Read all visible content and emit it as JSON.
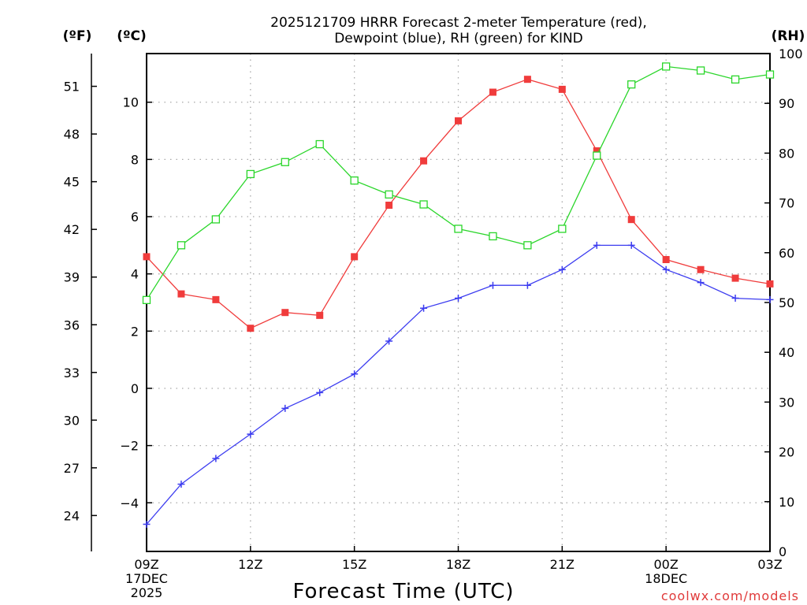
{
  "chart_data": {
    "type": "line",
    "title": [
      "2025121709 HRRR Forecast 2-meter Temperature (red),",
      "Dewpoint (blue), RH (green) for KIND"
    ],
    "xlabel": "Forecast Time (UTC)",
    "credit": "coolwx.com/models",
    "units": {
      "fahrenheit": "(ºF)",
      "celsius": "(ºC)",
      "rh": "(RH)"
    },
    "x_hours": [
      0,
      1,
      2,
      3,
      4,
      5,
      6,
      7,
      8,
      9,
      10,
      11,
      12,
      13,
      14,
      15,
      16,
      17,
      18
    ],
    "xlim": [
      0,
      18
    ],
    "x_ticks": [
      {
        "hour": 0,
        "lines": [
          "09Z",
          "17DEC",
          "2025"
        ]
      },
      {
        "hour": 3,
        "lines": [
          "12Z"
        ]
      },
      {
        "hour": 6,
        "lines": [
          "15Z"
        ]
      },
      {
        "hour": 9,
        "lines": [
          "18Z"
        ]
      },
      {
        "hour": 12,
        "lines": [
          "21Z"
        ]
      },
      {
        "hour": 15,
        "lines": [
          "00Z",
          "18DEC"
        ]
      },
      {
        "hour": 18,
        "lines": [
          "03Z"
        ]
      }
    ],
    "ylim_celsius": [
      -5.7,
      11.7
    ],
    "yticks_celsius": [
      "−4",
      "−2",
      "0",
      "2",
      "4",
      "6",
      "8",
      "10"
    ],
    "yticks_celsius_values": [
      -4,
      -2,
      0,
      2,
      4,
      6,
      8,
      10
    ],
    "yticks_fahrenheit": [
      "24",
      "27",
      "30",
      "33",
      "36",
      "39",
      "42",
      "45",
      "48",
      "51"
    ],
    "yticks_fahrenheit_values": [
      24,
      27,
      30,
      33,
      36,
      39,
      42,
      45,
      48,
      51
    ],
    "ylim_rh": [
      0,
      100
    ],
    "yticks_rh": [
      "0",
      "10",
      "20",
      "30",
      "40",
      "50",
      "60",
      "70",
      "80",
      "90",
      "100"
    ],
    "yticks_rh_values": [
      0,
      10,
      20,
      30,
      40,
      50,
      60,
      70,
      80,
      90,
      100
    ],
    "grid": true,
    "series": [
      {
        "name": "Temperature",
        "axis": "celsius",
        "color": "#f03c3c",
        "marker": "filled-square",
        "values": [
          4.6,
          3.3,
          3.1,
          2.1,
          2.65,
          2.55,
          4.6,
          6.4,
          7.95,
          9.35,
          10.35,
          10.8,
          10.45,
          8.3,
          5.9,
          4.5,
          4.15,
          3.85,
          3.65
        ]
      },
      {
        "name": "Dewpoint",
        "axis": "celsius",
        "color": "#3c3cf0",
        "marker": "plus",
        "values": [
          -4.75,
          -3.35,
          -2.45,
          -1.6,
          -0.7,
          -0.15,
          0.5,
          1.65,
          2.8,
          3.15,
          3.6,
          3.6,
          4.15,
          5.0,
          5.0,
          4.15,
          3.7,
          3.15,
          3.1
        ]
      },
      {
        "name": "RH",
        "axis": "rh",
        "color": "#2ad62a",
        "marker": "open-square",
        "values": [
          50.5,
          61.5,
          66.7,
          75.8,
          78.2,
          81.8,
          74.5,
          71.7,
          69.7,
          64.8,
          63.3,
          61.5,
          64.8,
          79.5,
          93.8,
          97.4,
          96.6,
          94.8,
          95.8
        ]
      }
    ]
  }
}
